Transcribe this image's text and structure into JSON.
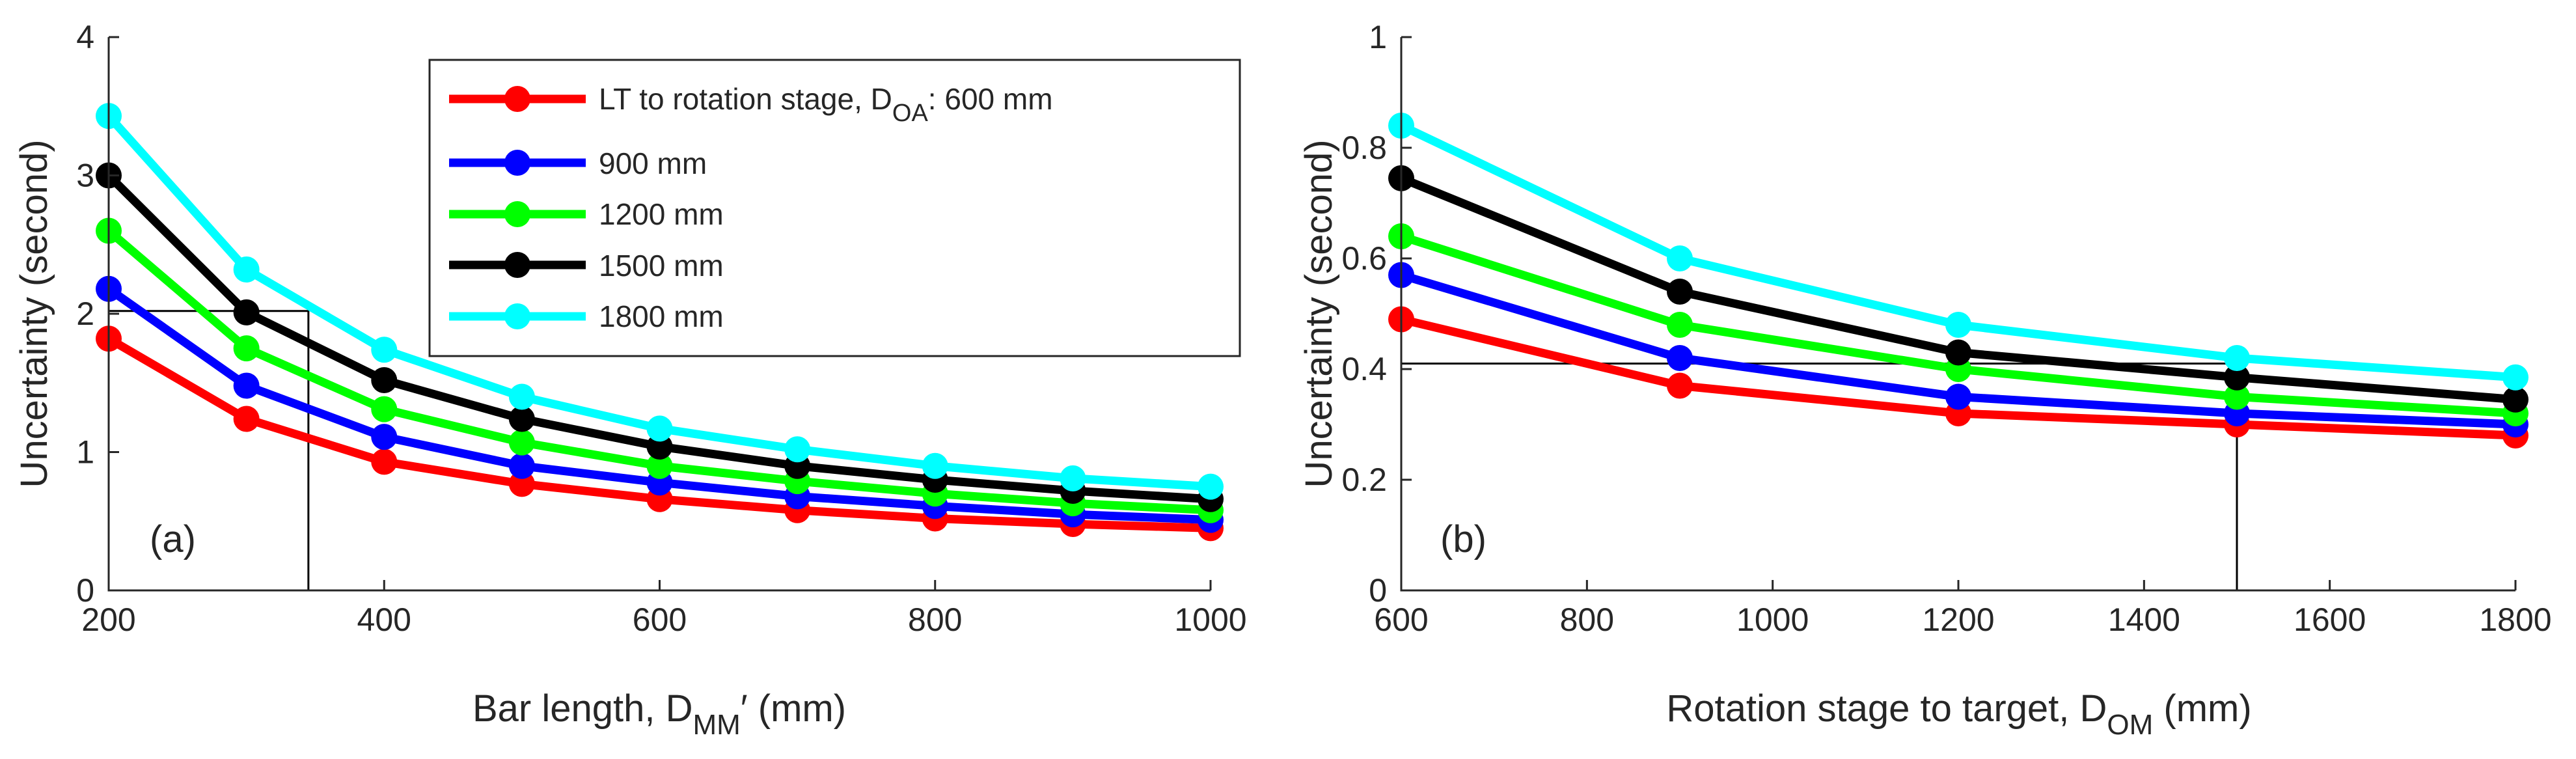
{
  "chart_data": [
    {
      "type": "line",
      "panel_label": "(a)",
      "x": [
        200,
        300,
        400,
        500,
        600,
        700,
        800,
        900,
        1000
      ],
      "xlim": [
        200,
        1000
      ],
      "ylim": [
        0,
        4
      ],
      "xticks": [
        200,
        400,
        600,
        800,
        1000
      ],
      "yticks": [
        0,
        1,
        2,
        3,
        4
      ],
      "xlabel": {
        "main": "Bar length, D",
        "sub": "MM",
        "prime": "′",
        "unit": " (mm)"
      },
      "ylabel": "Uncertainty (second)",
      "guide": {
        "x": 345,
        "y": 2.02
      },
      "series": [
        {
          "name": "600 mm",
          "color": "#ff0000",
          "values": [
            1.82,
            1.24,
            0.93,
            0.77,
            0.66,
            0.58,
            0.52,
            0.48,
            0.45
          ]
        },
        {
          "name": "900 mm",
          "color": "#0000ff",
          "values": [
            2.18,
            1.48,
            1.11,
            0.9,
            0.78,
            0.68,
            0.61,
            0.55,
            0.51
          ]
        },
        {
          "name": "1200 mm",
          "color": "#00ff00",
          "values": [
            2.6,
            1.75,
            1.31,
            1.07,
            0.9,
            0.79,
            0.7,
            0.63,
            0.58
          ]
        },
        {
          "name": "1500 mm",
          "color": "#000000",
          "values": [
            3.0,
            2.01,
            1.52,
            1.24,
            1.04,
            0.9,
            0.8,
            0.72,
            0.66
          ]
        },
        {
          "name": "1800 mm",
          "color": "#00ffff",
          "values": [
            3.43,
            2.32,
            1.74,
            1.4,
            1.17,
            1.02,
            0.9,
            0.81,
            0.75
          ]
        }
      ],
      "legend": {
        "placement": "top-right",
        "first_entry": {
          "main": "LT to rotation stage, D",
          "sub": "OA",
          "rest": ": 600 mm"
        },
        "entries": [
          "900 mm",
          "1200 mm",
          "1500 mm",
          "1800 mm"
        ]
      }
    },
    {
      "type": "line",
      "panel_label": "(b)",
      "x": [
        600,
        900,
        1200,
        1500,
        1800
      ],
      "xlim": [
        600,
        1800
      ],
      "ylim": [
        0,
        1
      ],
      "xticks": [
        600,
        800,
        1000,
        1200,
        1400,
        1600,
        1800
      ],
      "yticks": [
        0,
        0.2,
        0.4,
        0.6,
        0.8,
        1
      ],
      "xlabel": {
        "main": "Rotation stage to target, D",
        "sub": "OM",
        "unit": " (mm)"
      },
      "ylabel": "Uncertainty (second)",
      "guide": {
        "x": 1500,
        "y": 0.41
      },
      "series": [
        {
          "name": "600 mm",
          "color": "#ff0000",
          "values": [
            0.49,
            0.37,
            0.32,
            0.3,
            0.28
          ]
        },
        {
          "name": "900 mm",
          "color": "#0000ff",
          "values": [
            0.57,
            0.42,
            0.35,
            0.32,
            0.3
          ]
        },
        {
          "name": "1200 mm",
          "color": "#00ff00",
          "values": [
            0.64,
            0.48,
            0.4,
            0.35,
            0.32
          ]
        },
        {
          "name": "1500 mm",
          "color": "#000000",
          "values": [
            0.745,
            0.54,
            0.43,
            0.385,
            0.345
          ]
        },
        {
          "name": "1800 mm",
          "color": "#00ffff",
          "values": [
            0.84,
            0.6,
            0.48,
            0.42,
            0.385
          ]
        }
      ]
    }
  ]
}
